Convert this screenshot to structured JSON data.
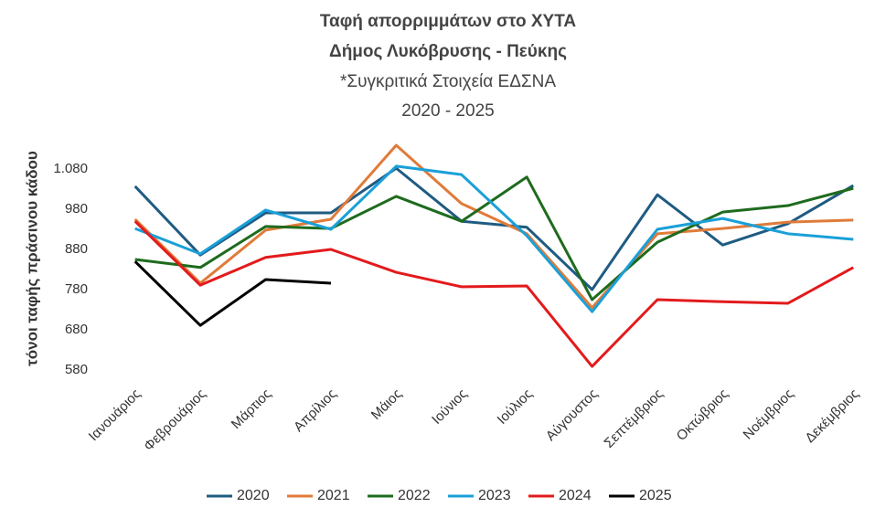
{
  "chart_data": {
    "type": "line",
    "title": [
      "Ταφή απορριμμάτων στο ΧΥΤΑ",
      "Δήμος Λυκόβρυσης - Πεύκης",
      "*Συγκριτικά Στοιχεία ΕΔΣΝΑ",
      "2020 - 2025"
    ],
    "y_label": "τόνοι ταφής πράσινου κάδου",
    "categories": [
      "Ιανουάριος",
      "Φεβρουάριος",
      "Μάρτιος",
      "Απρίλιος",
      "Μάιος",
      "Ιούνιος",
      "Ιούλιος",
      "Αύγουστος",
      "Σεπτέμβριος",
      "Οκτώβριος",
      "Νοέμβριος",
      "Δεκέμβριος"
    ],
    "series": [
      {
        "name": "2020",
        "color": "#1f5b82",
        "values": [
          1037,
          866,
          971,
          971,
          1082,
          950,
          935,
          780,
          1016,
          891,
          944,
          1039
        ]
      },
      {
        "name": "2021",
        "color": "#e07b39",
        "values": [
          955,
          796,
          928,
          955,
          1139,
          994,
          919,
          735,
          919,
          932,
          948,
          953
        ]
      },
      {
        "name": "2022",
        "color": "#1e6b1e",
        "values": [
          855,
          835,
          937,
          932,
          1012,
          950,
          1060,
          755,
          898,
          973,
          989,
          1032
        ]
      },
      {
        "name": "2023",
        "color": "#1aa0d8",
        "values": [
          932,
          869,
          978,
          930,
          1087,
          1066,
          914,
          725,
          930,
          957,
          919,
          905
        ]
      },
      {
        "name": "2024",
        "color": "#e31a1c",
        "values": [
          950,
          791,
          860,
          880,
          823,
          787,
          789,
          589,
          755,
          750,
          746,
          835
        ]
      },
      {
        "name": "2025",
        "color": "#000000",
        "values": [
          850,
          691,
          805,
          796,
          null,
          null,
          null,
          null,
          null,
          null,
          null,
          null
        ]
      }
    ],
    "ylim": [
      580,
      1150
    ],
    "yticks": [
      580,
      680,
      780,
      880,
      980,
      {
        "value": 1080,
        "label": "1.080"
      }
    ],
    "legend": "bottom",
    "grid": false
  }
}
